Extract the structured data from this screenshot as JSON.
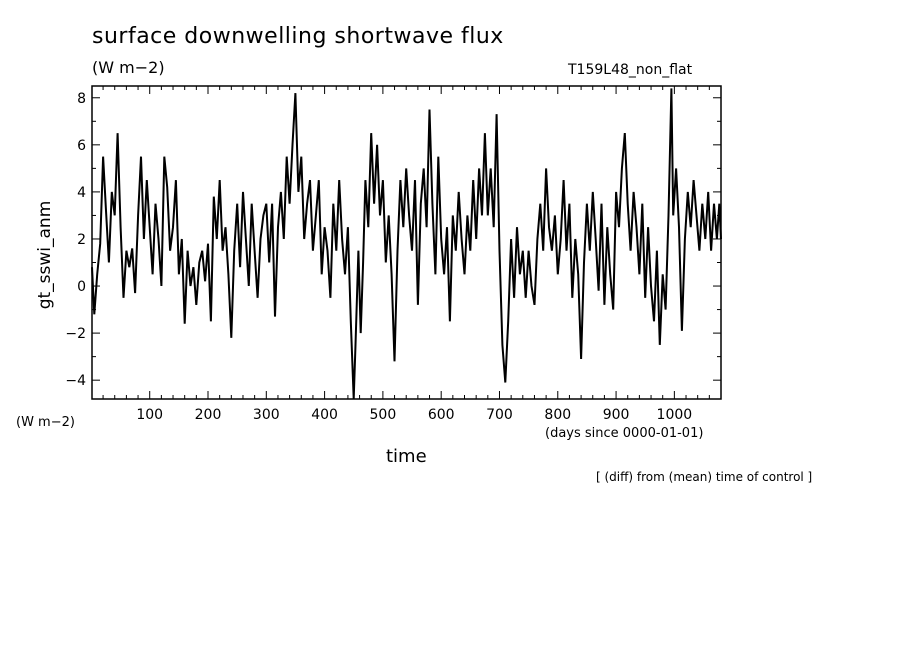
{
  "header": {
    "title": "surface downwelling shortwave flux",
    "unit": "(W m−2)",
    "run_id": "T159L48_non_flat"
  },
  "axes": {
    "y_unit": "(W m−2)",
    "x_unit": "(days since 0000-01-01)"
  },
  "footer": {
    "note": "[ (diff) from (mean) time of control ]"
  },
  "colors": {
    "line": "#000000",
    "frame": "#000000",
    "background": "#ffffff"
  },
  "chart_data": {
    "type": "line",
    "title": "surface downwelling shortwave flux",
    "ylabel": "gt_sswi_anm",
    "xlabel": "time",
    "xlim": [
      1,
      1080
    ],
    "ylim": [
      -4.8,
      8.5
    ],
    "xticks": [
      100,
      200,
      300,
      400,
      500,
      600,
      700,
      800,
      900,
      1000
    ],
    "yticks": [
      -4,
      -2,
      0,
      2,
      4,
      6,
      8
    ],
    "xtick_labels": [
      "100",
      "200",
      "300",
      "400",
      "500",
      "600",
      "700",
      "800",
      "900",
      "1000"
    ],
    "ytick_labels": [
      "−4",
      "−2",
      "0",
      "2",
      "4",
      "6",
      "8"
    ],
    "grid": false,
    "legend": "none",
    "series": [
      {
        "points": [
          [
            1,
            0.8
          ],
          [
            5,
            -1.2
          ],
          [
            10,
            0.5
          ],
          [
            15,
            1.8
          ],
          [
            20,
            5.5
          ],
          [
            25,
            3.2
          ],
          [
            30,
            1.0
          ],
          [
            35,
            4.0
          ],
          [
            40,
            3.0
          ],
          [
            45,
            6.5
          ],
          [
            50,
            2.5
          ],
          [
            55,
            -0.5
          ],
          [
            60,
            1.5
          ],
          [
            65,
            0.8
          ],
          [
            70,
            1.6
          ],
          [
            75,
            -0.3
          ],
          [
            80,
            3.0
          ],
          [
            85,
            5.5
          ],
          [
            90,
            2.0
          ],
          [
            95,
            4.5
          ],
          [
            100,
            2.5
          ],
          [
            105,
            0.5
          ],
          [
            110,
            3.5
          ],
          [
            115,
            2.0
          ],
          [
            120,
            0.0
          ],
          [
            125,
            5.5
          ],
          [
            130,
            4.2
          ],
          [
            135,
            1.5
          ],
          [
            140,
            2.5
          ],
          [
            145,
            4.5
          ],
          [
            150,
            0.5
          ],
          [
            155,
            2.0
          ],
          [
            160,
            -1.6
          ],
          [
            165,
            1.5
          ],
          [
            170,
            0.0
          ],
          [
            175,
            0.8
          ],
          [
            180,
            -0.8
          ],
          [
            185,
            1.0
          ],
          [
            190,
            1.5
          ],
          [
            195,
            0.2
          ],
          [
            200,
            1.8
          ],
          [
            205,
            -1.5
          ],
          [
            210,
            3.8
          ],
          [
            215,
            2.0
          ],
          [
            220,
            4.5
          ],
          [
            225,
            1.5
          ],
          [
            230,
            2.5
          ],
          [
            235,
            0.5
          ],
          [
            240,
            -2.2
          ],
          [
            245,
            1.5
          ],
          [
            250,
            3.5
          ],
          [
            255,
            0.8
          ],
          [
            260,
            4.0
          ],
          [
            265,
            2.0
          ],
          [
            270,
            0.0
          ],
          [
            275,
            3.5
          ],
          [
            280,
            1.5
          ],
          [
            285,
            -0.5
          ],
          [
            290,
            2.0
          ],
          [
            295,
            3.0
          ],
          [
            300,
            3.5
          ],
          [
            305,
            1.0
          ],
          [
            310,
            3.5
          ],
          [
            315,
            -1.3
          ],
          [
            320,
            2.5
          ],
          [
            325,
            4.0
          ],
          [
            330,
            2.0
          ],
          [
            335,
            5.5
          ],
          [
            340,
            3.5
          ],
          [
            345,
            6.0
          ],
          [
            350,
            8.2
          ],
          [
            355,
            4.0
          ],
          [
            360,
            5.5
          ],
          [
            365,
            2.0
          ],
          [
            370,
            3.5
          ],
          [
            375,
            4.5
          ],
          [
            380,
            1.5
          ],
          [
            385,
            3.0
          ],
          [
            390,
            4.5
          ],
          [
            395,
            0.5
          ],
          [
            400,
            2.5
          ],
          [
            405,
            1.5
          ],
          [
            410,
            -0.5
          ],
          [
            415,
            3.5
          ],
          [
            420,
            1.5
          ],
          [
            425,
            4.5
          ],
          [
            430,
            2.0
          ],
          [
            435,
            0.5
          ],
          [
            440,
            2.5
          ],
          [
            445,
            -1.5
          ],
          [
            450,
            -4.8
          ],
          [
            453,
            -2.5
          ],
          [
            458,
            1.5
          ],
          [
            462,
            -2.0
          ],
          [
            466,
            1.0
          ],
          [
            470,
            4.5
          ],
          [
            475,
            2.5
          ],
          [
            480,
            6.5
          ],
          [
            485,
            3.5
          ],
          [
            490,
            6.0
          ],
          [
            495,
            3.0
          ],
          [
            500,
            4.5
          ],
          [
            505,
            1.0
          ],
          [
            510,
            3.0
          ],
          [
            515,
            0.5
          ],
          [
            520,
            -3.2
          ],
          [
            525,
            1.5
          ],
          [
            530,
            4.5
          ],
          [
            535,
            2.5
          ],
          [
            540,
            5.0
          ],
          [
            545,
            3.0
          ],
          [
            550,
            1.5
          ],
          [
            555,
            4.5
          ],
          [
            560,
            -0.8
          ],
          [
            565,
            3.5
          ],
          [
            570,
            5.0
          ],
          [
            575,
            2.5
          ],
          [
            580,
            7.5
          ],
          [
            585,
            3.5
          ],
          [
            590,
            0.5
          ],
          [
            595,
            5.5
          ],
          [
            600,
            2.0
          ],
          [
            605,
            0.5
          ],
          [
            610,
            2.5
          ],
          [
            615,
            -1.5
          ],
          [
            620,
            3.0
          ],
          [
            625,
            1.5
          ],
          [
            630,
            4.0
          ],
          [
            635,
            2.0
          ],
          [
            640,
            0.5
          ],
          [
            645,
            3.0
          ],
          [
            650,
            1.5
          ],
          [
            655,
            4.5
          ],
          [
            660,
            2.0
          ],
          [
            665,
            5.0
          ],
          [
            670,
            3.0
          ],
          [
            675,
            6.5
          ],
          [
            680,
            3.0
          ],
          [
            685,
            5.0
          ],
          [
            690,
            2.5
          ],
          [
            695,
            7.3
          ],
          [
            700,
            1.5
          ],
          [
            705,
            -2.5
          ],
          [
            710,
            -4.1
          ],
          [
            715,
            -1.5
          ],
          [
            720,
            2.0
          ],
          [
            725,
            -0.5
          ],
          [
            730,
            2.5
          ],
          [
            735,
            0.5
          ],
          [
            740,
            1.5
          ],
          [
            745,
            -0.5
          ],
          [
            750,
            1.5
          ],
          [
            755,
            0.0
          ],
          [
            760,
            -0.8
          ],
          [
            765,
            2.0
          ],
          [
            770,
            3.5
          ],
          [
            775,
            1.5
          ],
          [
            780,
            5.0
          ],
          [
            785,
            2.5
          ],
          [
            790,
            1.5
          ],
          [
            795,
            3.0
          ],
          [
            800,
            0.5
          ],
          [
            805,
            2.0
          ],
          [
            810,
            4.5
          ],
          [
            815,
            1.5
          ],
          [
            820,
            3.5
          ],
          [
            825,
            -0.5
          ],
          [
            830,
            2.0
          ],
          [
            835,
            0.5
          ],
          [
            840,
            -3.1
          ],
          [
            845,
            1.0
          ],
          [
            850,
            3.5
          ],
          [
            855,
            1.5
          ],
          [
            860,
            4.0
          ],
          [
            865,
            2.0
          ],
          [
            870,
            -0.2
          ],
          [
            875,
            3.5
          ],
          [
            880,
            -0.8
          ],
          [
            885,
            2.5
          ],
          [
            890,
            0.5
          ],
          [
            895,
            -1.0
          ],
          [
            900,
            4.0
          ],
          [
            905,
            2.5
          ],
          [
            910,
            5.0
          ],
          [
            915,
            6.5
          ],
          [
            920,
            3.5
          ],
          [
            925,
            1.5
          ],
          [
            930,
            4.0
          ],
          [
            935,
            2.5
          ],
          [
            940,
            0.5
          ],
          [
            945,
            3.5
          ],
          [
            950,
            -0.5
          ],
          [
            955,
            2.5
          ],
          [
            960,
            0.0
          ],
          [
            965,
            -1.5
          ],
          [
            970,
            1.5
          ],
          [
            975,
            -2.5
          ],
          [
            980,
            0.5
          ],
          [
            985,
            -1.0
          ],
          [
            990,
            3.0
          ],
          [
            995,
            8.4
          ],
          [
            998,
            3.0
          ],
          [
            1003,
            5.0
          ],
          [
            1008,
            2.5
          ],
          [
            1013,
            -1.9
          ],
          [
            1018,
            2.0
          ],
          [
            1023,
            4.0
          ],
          [
            1028,
            2.5
          ],
          [
            1033,
            4.5
          ],
          [
            1038,
            3.0
          ],
          [
            1043,
            1.5
          ],
          [
            1048,
            3.5
          ],
          [
            1053,
            2.0
          ],
          [
            1058,
            4.0
          ],
          [
            1063,
            1.5
          ],
          [
            1068,
            3.5
          ],
          [
            1073,
            2.0
          ],
          [
            1077,
            3.5
          ],
          [
            1080,
            2.0
          ]
        ]
      }
    ]
  }
}
